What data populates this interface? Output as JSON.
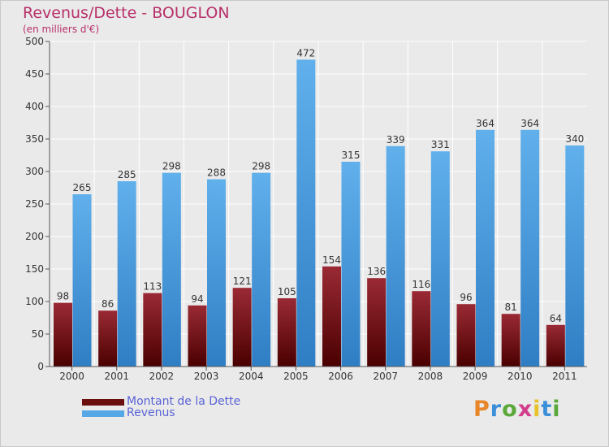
{
  "title": "Revenus/Dette - BOUGLON",
  "subtitle": "(en milliers d'€)",
  "colors": {
    "background": "#eaeaea",
    "title": "#b8306a",
    "dette_top": "#9a2a35",
    "dette_bottom": "#4a0000",
    "revenus_top": "#61b0ec",
    "revenus_bottom": "#2f7ec4",
    "legend_text": "#5a63d6"
  },
  "legend": [
    {
      "label": "Montant de la Dette",
      "color": "#6b0e0e"
    },
    {
      "label": "Revenus",
      "color": "#55a7e6"
    }
  ],
  "logo": {
    "text": "Proxiti",
    "icon": "proxiti-logo"
  },
  "chart_data": {
    "type": "bar",
    "title": "Revenus/Dette - BOUGLON",
    "subtitle": "(en milliers d'€)",
    "categories": [
      "2000",
      "2001",
      "2002",
      "2003",
      "2004",
      "2005",
      "2006",
      "2007",
      "2008",
      "2009",
      "2010",
      "2011"
    ],
    "series": [
      {
        "name": "Montant de la Dette",
        "values": [
          98,
          86,
          113,
          94,
          121,
          105,
          154,
          136,
          116,
          96,
          81,
          64
        ]
      },
      {
        "name": "Revenus",
        "values": [
          265,
          285,
          298,
          288,
          298,
          472,
          315,
          339,
          331,
          364,
          364,
          340
        ]
      }
    ],
    "ylim": [
      0,
      500
    ],
    "yticks": [
      0,
      50,
      100,
      150,
      200,
      250,
      300,
      350,
      400,
      450,
      500
    ],
    "grid": true,
    "legend_position": "bottom-left",
    "data_labels": true
  }
}
